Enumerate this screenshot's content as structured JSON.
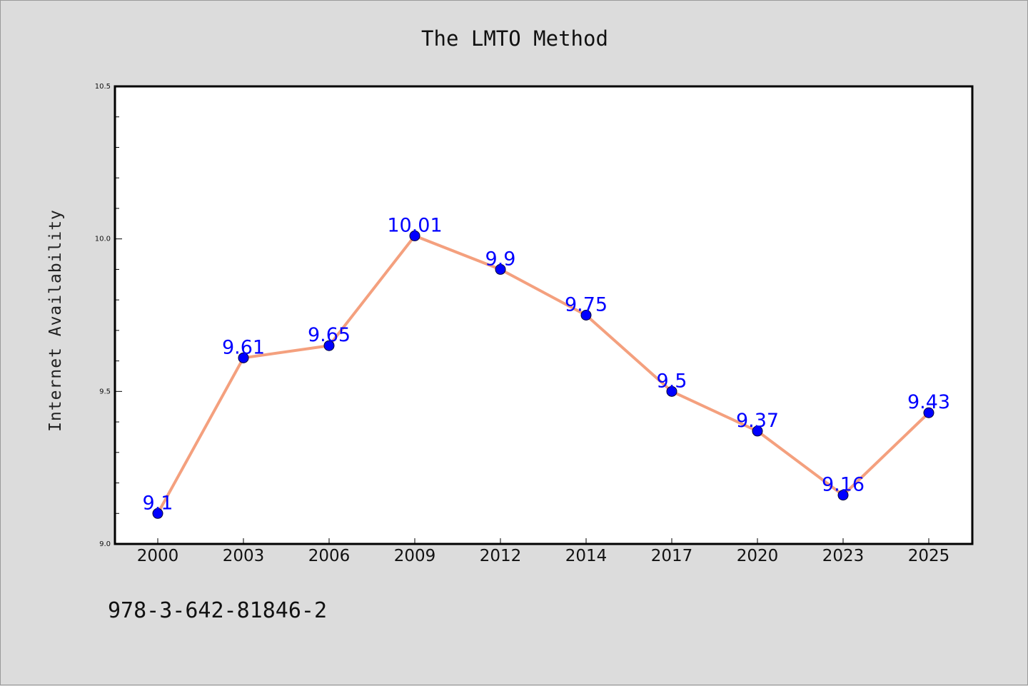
{
  "chart_data": {
    "type": "line",
    "title": "The LMTO Method",
    "ylabel": "Internet Availability",
    "xlabel": "",
    "categories": [
      "2000",
      "2003",
      "2006",
      "2009",
      "2012",
      "2014",
      "2017",
      "2020",
      "2023",
      "2025"
    ],
    "series": [
      {
        "values": [
          9.1,
          9.61,
          9.65,
          10.01,
          9.9,
          9.75,
          9.5,
          9.37,
          9.16,
          9.43
        ],
        "labels": [
          "9.1",
          "9.61",
          "9.65",
          "10.01",
          "9.9",
          "9.75",
          "9.5",
          "9.37",
          "9.16",
          "9.43"
        ]
      }
    ],
    "ylim": [
      9.0,
      10.5
    ],
    "yticks": [
      "9.0",
      "9.5",
      "10.0",
      "10.5"
    ],
    "grid": false,
    "legend": "none",
    "colors": {
      "line": "#f4a07e",
      "marker": "#0000ff",
      "labels": "#0000ff"
    }
  },
  "footer_text": "978-3-642-81846-2"
}
